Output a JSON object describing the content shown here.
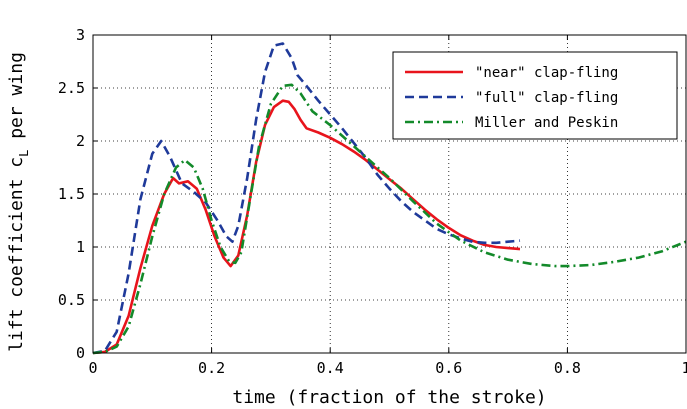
{
  "chart_data": {
    "type": "line",
    "xlabel": "time (fraction of the stroke)",
    "ylabel_main": "lift coefficient c",
    "ylabel_sub": "L",
    "ylabel_tail": " per wing",
    "xlim": [
      0,
      1
    ],
    "ylim": [
      0,
      3
    ],
    "grid": true,
    "legend_position": "top-right",
    "x_ticks": [
      0,
      0.2,
      0.4,
      0.6,
      0.8,
      1
    ],
    "x_tick_labels": [
      "0",
      "0.2",
      "0.4",
      "0.6",
      "0.8",
      "1"
    ],
    "y_ticks": [
      0,
      0.5,
      1,
      1.5,
      2,
      2.5,
      3
    ],
    "y_tick_labels": [
      "0",
      "0.5",
      "1",
      "1.5",
      "2",
      "2.5",
      "3"
    ],
    "series": [
      {
        "name": "\"near\" clap-fling",
        "color": "#e8141c",
        "dash": "solid",
        "x": [
          0,
          0.02,
          0.04,
          0.06,
          0.08,
          0.1,
          0.12,
          0.135,
          0.145,
          0.16,
          0.175,
          0.19,
          0.205,
          0.22,
          0.232,
          0.245,
          0.26,
          0.275,
          0.29,
          0.305,
          0.32,
          0.33,
          0.34,
          0.35,
          0.36,
          0.38,
          0.4,
          0.42,
          0.44,
          0.46,
          0.48,
          0.5,
          0.52,
          0.54,
          0.56,
          0.58,
          0.6,
          0.62,
          0.64,
          0.66,
          0.68,
          0.7,
          0.72
        ],
        "y": [
          0,
          0.01,
          0.08,
          0.35,
          0.8,
          1.2,
          1.5,
          1.65,
          1.6,
          1.62,
          1.55,
          1.35,
          1.1,
          0.9,
          0.82,
          0.92,
          1.3,
          1.8,
          2.15,
          2.32,
          2.38,
          2.37,
          2.3,
          2.2,
          2.12,
          2.08,
          2.03,
          1.97,
          1.9,
          1.82,
          1.73,
          1.64,
          1.55,
          1.45,
          1.35,
          1.26,
          1.18,
          1.11,
          1.06,
          1.02,
          1.0,
          0.99,
          0.98
        ]
      },
      {
        "name": "\"full\" clap-fling",
        "color": "#1f3a9a",
        "dash": "dashed",
        "x": [
          0,
          0.02,
          0.04,
          0.06,
          0.08,
          0.1,
          0.115,
          0.13,
          0.15,
          0.17,
          0.19,
          0.21,
          0.225,
          0.235,
          0.245,
          0.26,
          0.275,
          0.29,
          0.305,
          0.32,
          0.335,
          0.345,
          0.36,
          0.38,
          0.4,
          0.42,
          0.44,
          0.46,
          0.48,
          0.5,
          0.52,
          0.54,
          0.56,
          0.58,
          0.6,
          0.62,
          0.64,
          0.66,
          0.68,
          0.7,
          0.72
        ],
        "y": [
          0,
          0.02,
          0.2,
          0.75,
          1.45,
          1.88,
          2.0,
          1.85,
          1.6,
          1.52,
          1.42,
          1.25,
          1.1,
          1.05,
          1.2,
          1.65,
          2.2,
          2.65,
          2.9,
          2.92,
          2.78,
          2.62,
          2.52,
          2.38,
          2.25,
          2.12,
          1.98,
          1.84,
          1.68,
          1.55,
          1.43,
          1.33,
          1.25,
          1.17,
          1.12,
          1.08,
          1.05,
          1.04,
          1.04,
          1.05,
          1.06
        ]
      },
      {
        "name": "Miller and Peskin",
        "color": "#138a2a",
        "dash": "dashdot",
        "x": [
          0,
          0.02,
          0.04,
          0.06,
          0.08,
          0.1,
          0.12,
          0.14,
          0.155,
          0.17,
          0.185,
          0.2,
          0.215,
          0.23,
          0.24,
          0.25,
          0.265,
          0.28,
          0.3,
          0.32,
          0.335,
          0.35,
          0.37,
          0.4,
          0.43,
          0.46,
          0.5,
          0.54,
          0.58,
          0.62,
          0.66,
          0.7,
          0.74,
          0.78,
          0.8,
          0.84,
          0.88,
          0.92,
          0.96,
          1.0
        ],
        "y": [
          0,
          0.01,
          0.06,
          0.25,
          0.65,
          1.1,
          1.5,
          1.75,
          1.82,
          1.75,
          1.55,
          1.25,
          1.0,
          0.86,
          0.85,
          0.95,
          1.45,
          1.95,
          2.35,
          2.52,
          2.53,
          2.45,
          2.28,
          2.15,
          2.0,
          1.85,
          1.65,
          1.43,
          1.22,
          1.06,
          0.95,
          0.88,
          0.84,
          0.82,
          0.82,
          0.83,
          0.86,
          0.9,
          0.96,
          1.05
        ]
      }
    ]
  }
}
